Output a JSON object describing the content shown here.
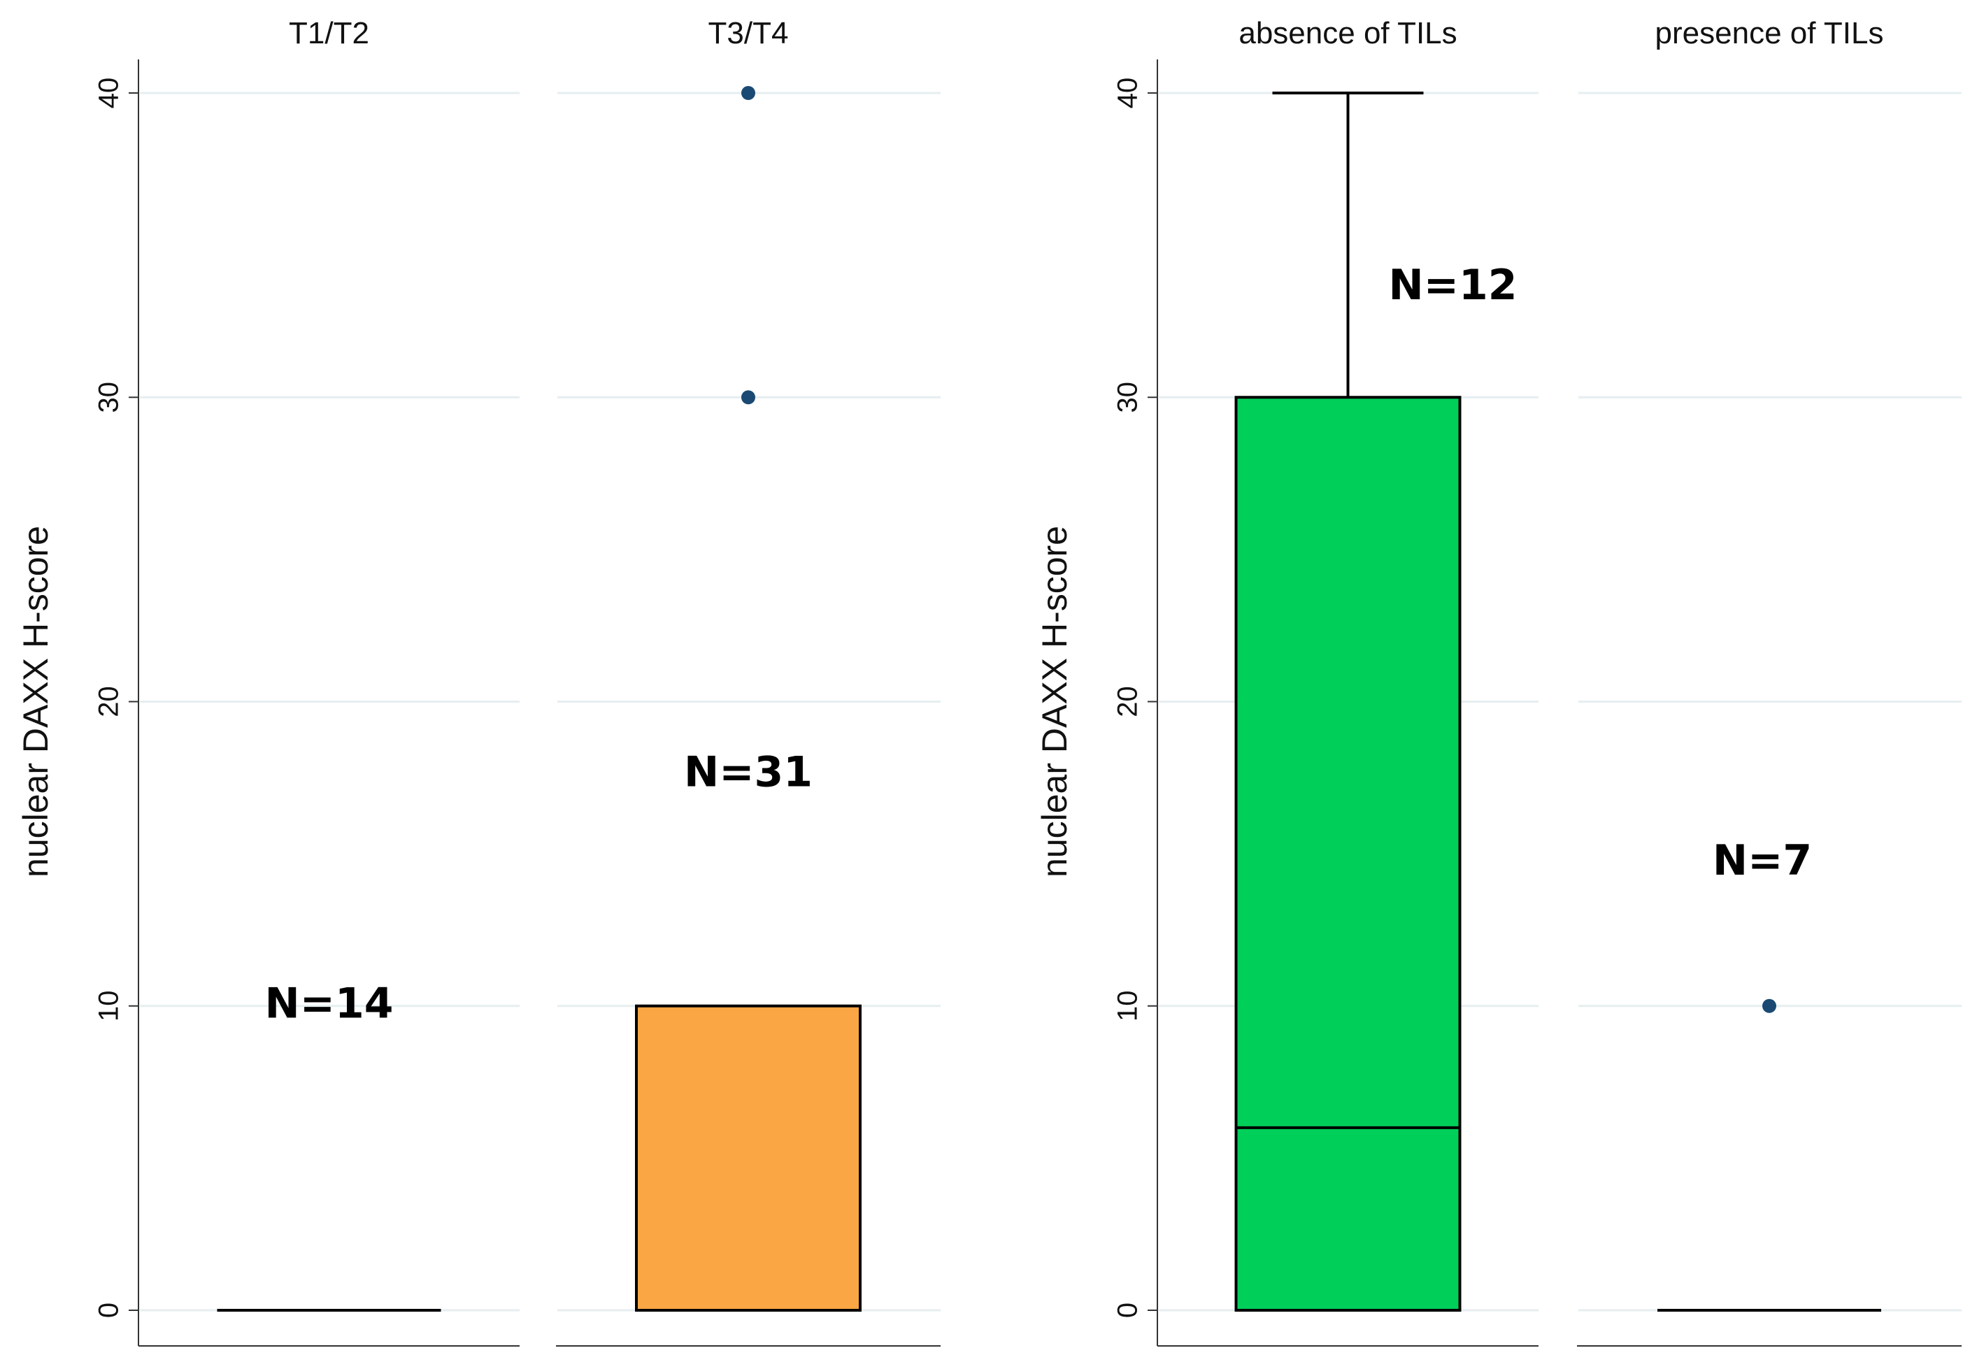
{
  "chart_data": [
    {
      "type": "box",
      "ylabel": "nuclear DAXX H-score",
      "ylim": [
        0,
        40
      ],
      "yticks": [
        0,
        10,
        20,
        30,
        40
      ],
      "grid": true,
      "panels": [
        {
          "title": "T1/T2",
          "n_label": "N=14",
          "n_label_y": 10,
          "color": "#ffffff",
          "min": 0,
          "q1": 0,
          "median": 0,
          "q3": 0,
          "max": 0,
          "outliers": []
        },
        {
          "title": "T3/T4",
          "n_label": "N=31",
          "n_label_y": 17.6,
          "color": "#fba644",
          "min": 0,
          "q1": 0,
          "median": 0,
          "q3": 10,
          "max": 10,
          "outliers": [
            30,
            40
          ]
        }
      ]
    },
    {
      "type": "box",
      "ylabel": "nuclear DAXX H-score",
      "ylim": [
        0,
        40
      ],
      "yticks": [
        0,
        10,
        20,
        30,
        40
      ],
      "grid": true,
      "panels": [
        {
          "title": "absence of TILs",
          "n_label": "N=12",
          "n_label_y": 33.6,
          "color": "#00cf5a",
          "min": 0,
          "q1": 0,
          "median": 6,
          "q3": 30,
          "max": 40,
          "outliers": []
        },
        {
          "title": "presence of TILs",
          "n_label": "N=7",
          "n_label_y": 14.7,
          "color": "#ffffff",
          "min": 0,
          "q1": 0,
          "median": 0,
          "q3": 0,
          "max": 0,
          "outliers": [
            10
          ]
        }
      ]
    }
  ],
  "colors": {
    "grid": "#e6eef0",
    "outlier": "#1a4a73",
    "line": "#000000"
  }
}
